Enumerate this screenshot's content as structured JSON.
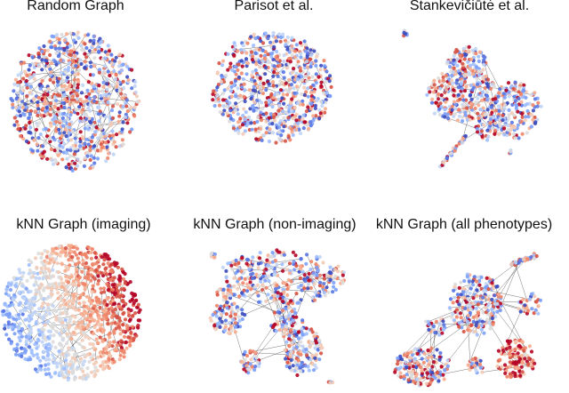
{
  "colors": {
    "node_palette": [
      "#3b4cc0",
      "#5977e3",
      "#7b9ff9",
      "#9ebeff",
      "#c0d4f5",
      "#dddcdc",
      "#f2cbb7",
      "#f7ac8e",
      "#ee8468",
      "#d65244",
      "#b40426"
    ],
    "edge": "#1a1a1a",
    "background": "#ffffff"
  },
  "panels": [
    {
      "id": "random-graph",
      "title": "Random Graph",
      "layout": "dense-blob"
    },
    {
      "id": "parisot",
      "title": "Parisot et al.",
      "layout": "compact-blob"
    },
    {
      "id": "stankeviciute",
      "title": "Stankevičiūtė et al.",
      "layout": "branched-clusters"
    },
    {
      "id": "knn-imaging",
      "title": "kNN Graph (imaging)",
      "layout": "gradient-blob"
    },
    {
      "id": "knn-non-imaging",
      "title": "kNN Graph (non-imaging)",
      "layout": "multi-clusters"
    },
    {
      "id": "knn-all",
      "title": "kNN Graph (all phenotypes)",
      "layout": "multi-clusters-bottom"
    }
  ]
}
